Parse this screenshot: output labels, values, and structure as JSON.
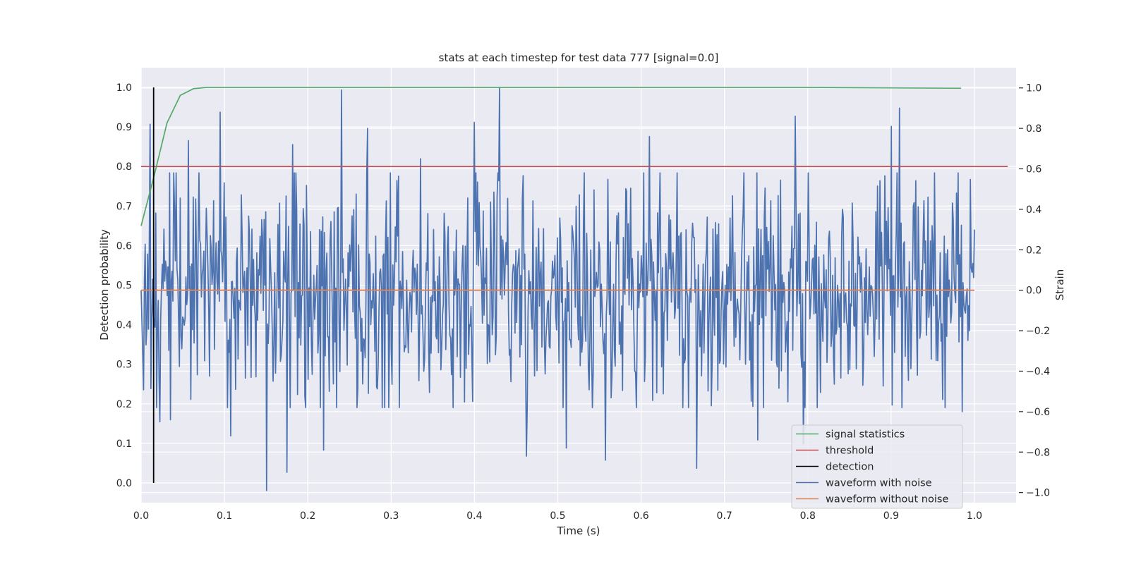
{
  "chart_data": {
    "type": "line",
    "title": "stats at each timestep for test data 777 [signal=0.0]",
    "xlabel": "Time (s)",
    "ylabel_left": "Detection probability",
    "ylabel_right": "Strain",
    "xlim": [
      0.0,
      1.05
    ],
    "ylim_left": [
      -0.05,
      1.05
    ],
    "ylim_right": [
      -1.05,
      1.1
    ],
    "xticks": [
      "0.0",
      "0.1",
      "0.2",
      "0.3",
      "0.4",
      "0.5",
      "0.6",
      "0.7",
      "0.8",
      "0.9",
      "1.0"
    ],
    "yticks_left": [
      "0.0",
      "0.1",
      "0.2",
      "0.3",
      "0.4",
      "0.5",
      "0.6",
      "0.7",
      "0.8",
      "0.9",
      "1.0"
    ],
    "yticks_right": [
      "−1.0",
      "−0.8",
      "−0.6",
      "−0.4",
      "−0.2",
      "0.0",
      "0.2",
      "0.4",
      "0.6",
      "0.8",
      "1.0"
    ],
    "grid": true,
    "legend_position": "lower-right",
    "colors": {
      "signal_statistics": "#55a868",
      "threshold": "#c44e52",
      "detection": "#000000",
      "waveform_with_noise": "#4c72b0",
      "waveform_without_noise": "#dd8452",
      "plot_background": "#eaeaf2",
      "grid": "#ffffff"
    },
    "series": [
      {
        "name": "signal statistics",
        "axis": "left",
        "x": [
          0.0,
          0.016,
          0.031,
          0.047,
          0.063,
          0.078,
          0.094,
          0.2,
          0.4,
          0.6,
          0.8,
          0.984
        ],
        "y": [
          0.65,
          0.78,
          0.91,
          0.98,
          0.997,
          1.0,
          1.0,
          1.0,
          1.0,
          1.0,
          1.0,
          0.998
        ]
      },
      {
        "name": "threshold",
        "axis": "left",
        "x": [
          0.0,
          1.04
        ],
        "y": [
          0.8,
          0.8
        ]
      },
      {
        "name": "detection",
        "axis": "left",
        "x": [
          0.015,
          0.015
        ],
        "y": [
          0.0,
          1.0
        ]
      },
      {
        "name": "waveform with noise",
        "axis": "right",
        "x_range": [
          0.0,
          1.0
        ],
        "anchors": [
          {
            "x": 0.0,
            "y": 0.0
          },
          {
            "x": 0.002,
            "y": -0.32
          },
          {
            "x": 0.011,
            "y": 0.82
          },
          {
            "x": 0.022,
            "y": -0.65
          },
          {
            "x": 0.035,
            "y": -0.64
          },
          {
            "x": 0.057,
            "y": 0.74
          },
          {
            "x": 0.095,
            "y": 0.88
          },
          {
            "x": 0.108,
            "y": -0.72
          },
          {
            "x": 0.151,
            "y": -0.99
          },
          {
            "x": 0.175,
            "y": -0.9
          },
          {
            "x": 0.182,
            "y": 0.72
          },
          {
            "x": 0.219,
            "y": -0.79
          },
          {
            "x": 0.24,
            "y": 0.99
          },
          {
            "x": 0.272,
            "y": 0.8
          },
          {
            "x": 0.335,
            "y": 0.65
          },
          {
            "x": 0.4,
            "y": 0.83
          },
          {
            "x": 0.43,
            "y": 1.0
          },
          {
            "x": 0.462,
            "y": -0.82
          },
          {
            "x": 0.51,
            "y": -0.78
          },
          {
            "x": 0.557,
            "y": -0.84
          },
          {
            "x": 0.61,
            "y": 0.76
          },
          {
            "x": 0.667,
            "y": -0.88
          },
          {
            "x": 0.74,
            "y": -0.74
          },
          {
            "x": 0.785,
            "y": 0.86
          },
          {
            "x": 0.795,
            "y": -0.76
          },
          {
            "x": 0.9,
            "y": 0.81
          },
          {
            "x": 0.91,
            "y": 0.9
          },
          {
            "x": 0.985,
            "y": -0.6
          },
          {
            "x": 1.0,
            "y": 0.3
          }
        ],
        "noise_amplitude_std": 0.3
      },
      {
        "name": "waveform without noise",
        "axis": "right",
        "x": [
          0.0,
          1.0
        ],
        "y": [
          0.0,
          0.0
        ]
      }
    ]
  }
}
